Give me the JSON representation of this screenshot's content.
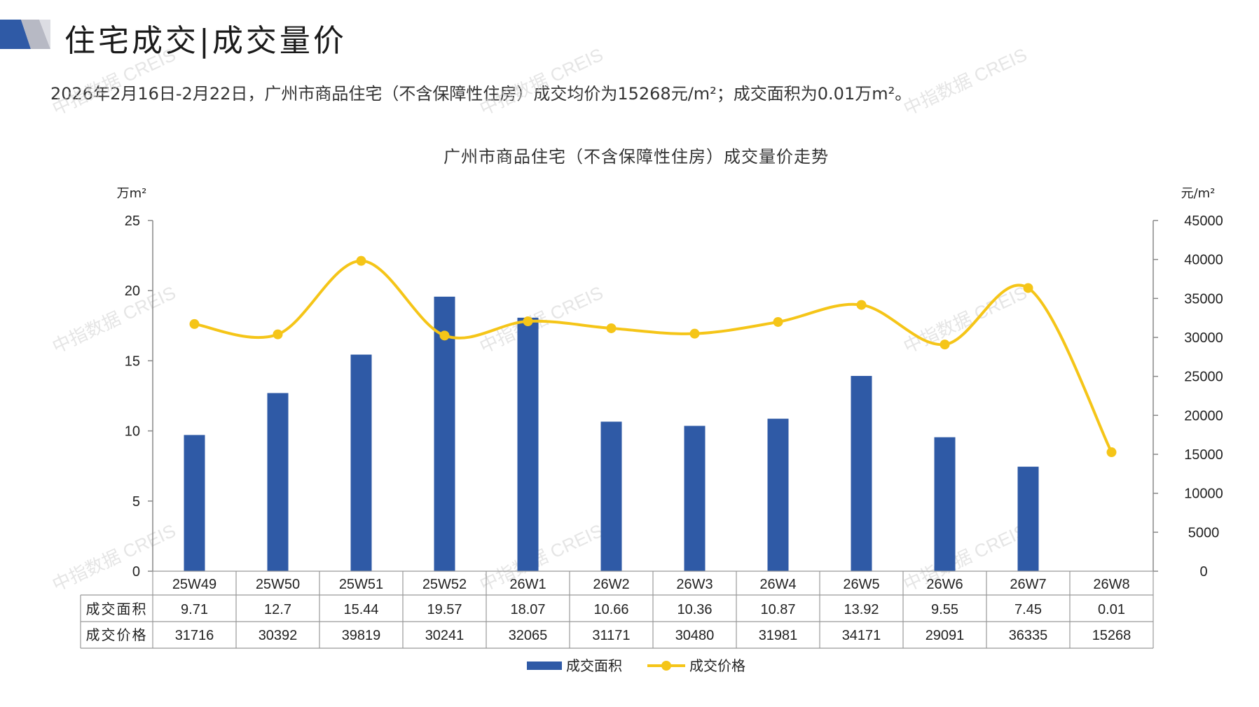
{
  "header": {
    "title": "住宅成交|成交量价"
  },
  "summary": "2026年2月16日-2月22日，广州市商品住宅（不含保障性住房）成交均价为15268元/m²；成交面积为0.01万m²。",
  "watermark": "中指数据 CREIS",
  "colors": {
    "bar": "#2f5aa6",
    "line": "#f5c518",
    "axis": "#888888",
    "grid": "#999999"
  },
  "chart_data": {
    "type": "bar+line",
    "title": "广州市商品住宅（不含保障性住房）成交量价走势",
    "left_unit": "万m²",
    "right_unit": "元/m²",
    "categories": [
      "25W49",
      "25W50",
      "25W51",
      "25W52",
      "26W1",
      "26W2",
      "26W3",
      "26W4",
      "26W5",
      "26W6",
      "26W7",
      "26W8"
    ],
    "series": [
      {
        "name": "成交面积",
        "type": "bar",
        "axis": "left",
        "values": [
          9.71,
          12.7,
          15.44,
          19.57,
          18.07,
          10.66,
          10.36,
          10.87,
          13.92,
          9.55,
          7.45,
          0.01
        ]
      },
      {
        "name": "成交价格",
        "type": "line",
        "axis": "right",
        "values": [
          31716,
          30392,
          39819,
          30241,
          32065,
          31171,
          30480,
          31981,
          34171,
          29091,
          36335,
          15268
        ]
      }
    ],
    "table_rows": [
      {
        "label": "成交面积",
        "values": [
          "9.71",
          "12.7",
          "15.44",
          "19.57",
          "18.07",
          "10.66",
          "10.36",
          "10.87",
          "13.92",
          "9.55",
          "7.45",
          "0.01"
        ]
      },
      {
        "label": "成交价格",
        "values": [
          "31716",
          "30392",
          "39819",
          "30241",
          "32065",
          "31171",
          "30480",
          "31981",
          "34171",
          "29091",
          "36335",
          "15268"
        ]
      }
    ],
    "ylim_left": [
      0,
      25
    ],
    "yticks_left": [
      0,
      5,
      10,
      15,
      20,
      25
    ],
    "ylim_right": [
      0,
      45000
    ],
    "yticks_right": [
      0,
      5000,
      10000,
      15000,
      20000,
      25000,
      30000,
      35000,
      40000,
      45000
    ],
    "legend_position": "bottom"
  }
}
